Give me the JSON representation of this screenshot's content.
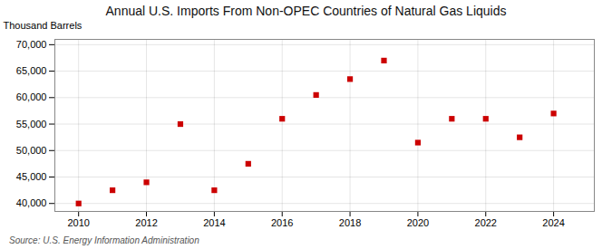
{
  "chart_data": {
    "type": "scatter",
    "title": "Annual U.S. Imports From Non-OPEC Countries of Natural Gas Liquids",
    "ylabel": "Thousand Barrels",
    "annotations": [
      "Source: U.S. Energy Information Administration"
    ],
    "x": [
      2010,
      2011,
      2012,
      2013,
      2014,
      2015,
      2016,
      2017,
      2018,
      2019,
      2020,
      2021,
      2022,
      2023,
      2024
    ],
    "values": [
      40000,
      42500,
      44000,
      55000,
      42500,
      47500,
      56000,
      60500,
      63500,
      67000,
      51500,
      56000,
      56000,
      52500,
      57000
    ],
    "color": "#cc0000",
    "marker": "square",
    "xlim": [
      2009.3,
      2025.2
    ],
    "xticks": [
      2010,
      2012,
      2014,
      2016,
      2018,
      2020,
      2022,
      2024
    ],
    "ylim": [
      38500,
      71000
    ],
    "yticks": [
      {
        "value": 40000,
        "label": "40,000"
      },
      {
        "value": 45000,
        "label": "45,000"
      },
      {
        "value": 50000,
        "label": "50,000"
      },
      {
        "value": 55000,
        "label": "55,000"
      },
      {
        "value": 60000,
        "label": "60,000"
      },
      {
        "value": 65000,
        "label": "65,000"
      },
      {
        "value": 70000,
        "label": "70,000"
      }
    ],
    "grid": true
  }
}
